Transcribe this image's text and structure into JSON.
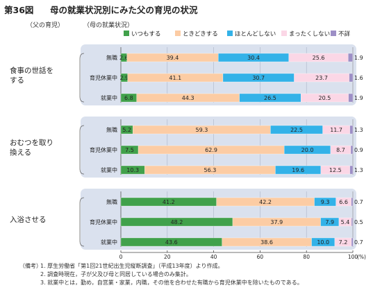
{
  "figure_label": "第36図",
  "title": "母の就業状況別にみた父の育児の状況",
  "header_left": "（父の育児）",
  "header_right": "（母の就業状況）",
  "x_unit": "(%)",
  "legend": [
    {
      "label": "いつもする",
      "color": "#41a14b"
    },
    {
      "label": "ときどきする",
      "color": "#fccca4"
    },
    {
      "label": "ほとんどしない",
      "color": "#33b2e8"
    },
    {
      "label": "まったくしない",
      "color": "#fbd7e6"
    },
    {
      "label": "不詳",
      "color": "#9d8fc6"
    }
  ],
  "notes": {
    "label": "（備考）",
    "lines": [
      "1. 厚生労働省「第1回21世紀出生児縦断調査」（平成13年度）より作成。",
      "2. 調査時現在，子が父及び母と同居している場合のみ集計。",
      "3. 就業中とは，勤め，自営業・家業，内職，その他を合わせた有職から育児休業中を除いたものである。"
    ]
  },
  "chart_data": {
    "type": "bar",
    "orientation": "horizontal",
    "stacked": true,
    "title": "母の就業状況別にみた父の育児の状況",
    "xlabel": "(%)",
    "xlim": [
      0,
      100
    ],
    "xticks": [
      0,
      20,
      40,
      60,
      80,
      100
    ],
    "legend_position": "top-right",
    "series_names": [
      "いつもする",
      "ときどきする",
      "ほとんどしない",
      "まったくしない",
      "不詳"
    ],
    "groups": [
      {
        "name": "食事の世話をする",
        "name_lines": [
          "食事の世話を",
          "する"
        ],
        "rows": [
          {
            "category": "無職",
            "values": [
              2.6,
              39.4,
              30.4,
              25.6,
              1.9
            ]
          },
          {
            "category": "育児休業中",
            "values": [
              2.9,
              41.1,
              30.7,
              23.7,
              1.6
            ]
          },
          {
            "category": "就業中",
            "values": [
              6.8,
              44.3,
              26.5,
              20.5,
              1.9
            ]
          }
        ]
      },
      {
        "name": "おむつを取り換える",
        "name_lines": [
          "おむつを取り",
          "換える"
        ],
        "rows": [
          {
            "category": "無職",
            "values": [
              5.2,
              59.3,
              22.5,
              11.7,
              1.3
            ]
          },
          {
            "category": "育児休業中",
            "values": [
              7.5,
              62.9,
              20.0,
              8.7,
              0.9
            ]
          },
          {
            "category": "就業中",
            "values": [
              10.3,
              56.3,
              19.6,
              12.5,
              1.3
            ]
          }
        ]
      },
      {
        "name": "入浴させる",
        "name_lines": [
          "入浴させる"
        ],
        "rows": [
          {
            "category": "無職",
            "values": [
              41.2,
              42.2,
              9.3,
              6.6,
              0.7
            ]
          },
          {
            "category": "育児休業中",
            "values": [
              48.2,
              37.9,
              7.9,
              5.4,
              0.5
            ]
          },
          {
            "category": "就業中",
            "values": [
              43.6,
              38.6,
              10.0,
              7.2,
              0.7
            ]
          }
        ]
      }
    ]
  }
}
